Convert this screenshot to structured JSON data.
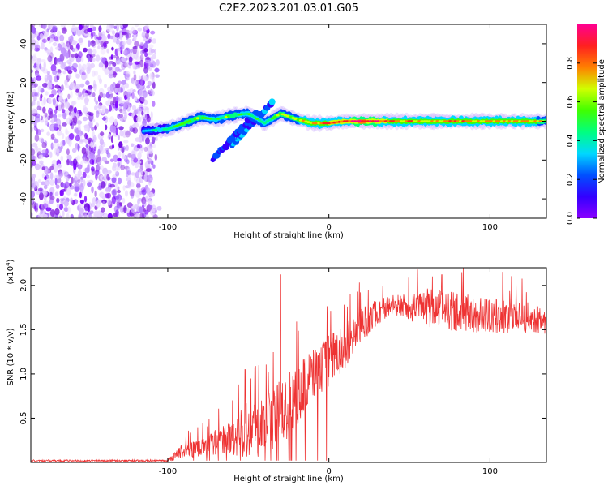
{
  "title": "C2E2.2023.201.03.01.G05",
  "chart_data": [
    {
      "type": "heatmap",
      "xlabel": "Height of straight line (km)",
      "ylabel": "Frequency (Hz)",
      "xlim": [
        -185,
        135
      ],
      "ylim": [
        -50,
        50
      ],
      "xticks": [
        -100,
        0,
        100
      ],
      "yticks": [
        -40,
        -20,
        0,
        20,
        40
      ],
      "colorbar": {
        "label": "Normalized spectral amplitude",
        "range": [
          0,
          1
        ],
        "ticks": [
          "0.0",
          "0.2",
          "0.4",
          "0.6",
          "0.8"
        ],
        "colors": [
          "#8a00ff",
          "#3300ff",
          "#0050ff",
          "#00d8ff",
          "#00ff80",
          "#40ff00",
          "#d0ff00",
          "#ff8000",
          "#ff2020",
          "#ff0090"
        ]
      },
      "noise_region": {
        "x_range": [
          -185,
          -105
        ],
        "freq_range": [
          -50,
          50
        ]
      },
      "signal_track": [
        {
          "x": -115,
          "freq": -5,
          "amp": 0.35
        },
        {
          "x": -100,
          "freq": -4,
          "amp": 0.45
        },
        {
          "x": -90,
          "freq": -1,
          "amp": 0.55
        },
        {
          "x": -80,
          "freq": 2,
          "amp": 0.55
        },
        {
          "x": -70,
          "freq": 1,
          "amp": 0.5
        },
        {
          "x": -60,
          "freq": 3,
          "amp": 0.55
        },
        {
          "x": -50,
          "freq": 4,
          "amp": 0.5
        },
        {
          "x": -40,
          "freq": -1,
          "amp": 0.45
        },
        {
          "x": -30,
          "freq": 4,
          "amp": 0.6
        },
        {
          "x": -20,
          "freq": 1,
          "amp": 0.65
        },
        {
          "x": -10,
          "freq": -1,
          "amp": 0.75
        },
        {
          "x": 0,
          "freq": -1,
          "amp": 0.8
        },
        {
          "x": 10,
          "freq": 0,
          "amp": 0.85
        },
        {
          "x": 20,
          "freq": 0,
          "amp": 0.95
        },
        {
          "x": 30,
          "freq": 0,
          "amp": 0.9
        },
        {
          "x": 40,
          "freq": 0,
          "amp": 0.75
        },
        {
          "x": 60,
          "freq": 0,
          "amp": 0.7
        },
        {
          "x": 80,
          "freq": 0,
          "amp": 0.75
        },
        {
          "x": 100,
          "freq": 0,
          "amp": 0.7
        },
        {
          "x": 120,
          "freq": 0,
          "amp": 0.7
        },
        {
          "x": 135,
          "freq": 0,
          "amp": 0.65
        }
      ],
      "branches": [
        {
          "from": [
            -60,
            -12
          ],
          "to": [
            -35,
            10
          ],
          "amp": 0.3
        },
        {
          "from": [
            -72,
            -20
          ],
          "to": [
            -45,
            5
          ],
          "amp": 0.25
        }
      ]
    },
    {
      "type": "line",
      "xlabel": "Height of straight line (km)",
      "ylabel": "SNR (10 * v/v)",
      "y_multiplier": "(x10",
      "y_multiplier_exp": "4",
      "y_multiplier_close": ")",
      "xlim": [
        -185,
        135
      ],
      "ylim": [
        0,
        2.2
      ],
      "xticks": [
        -100,
        0,
        100
      ],
      "yticks": [
        0.5,
        1.0,
        1.5,
        2.0
      ],
      "series_color": "#ee3333",
      "envelope": [
        {
          "x": -185,
          "base": 0.02,
          "spread": 0.01
        },
        {
          "x": -100,
          "base": 0.02,
          "spread": 0.01
        },
        {
          "x": -92,
          "base": 0.12,
          "spread": 0.08
        },
        {
          "x": -75,
          "base": 0.2,
          "spread": 0.12
        },
        {
          "x": -60,
          "base": 0.28,
          "spread": 0.2
        },
        {
          "x": -50,
          "base": 0.4,
          "spread": 0.35
        },
        {
          "x": -42,
          "base": 0.4,
          "spread": 0.35
        },
        {
          "x": -30,
          "base": 0.55,
          "spread": 0.4
        },
        {
          "x": -20,
          "base": 0.75,
          "spread": 0.35
        },
        {
          "x": -10,
          "base": 1.0,
          "spread": 0.3
        },
        {
          "x": 0,
          "base": 1.15,
          "spread": 0.3
        },
        {
          "x": 10,
          "base": 1.3,
          "spread": 0.25
        },
        {
          "x": 20,
          "base": 1.55,
          "spread": 0.2
        },
        {
          "x": 30,
          "base": 1.7,
          "spread": 0.15
        },
        {
          "x": 40,
          "base": 1.78,
          "spread": 0.12
        },
        {
          "x": 50,
          "base": 1.75,
          "spread": 0.15
        },
        {
          "x": 60,
          "base": 1.75,
          "spread": 0.22
        },
        {
          "x": 80,
          "base": 1.7,
          "spread": 0.22
        },
        {
          "x": 100,
          "base": 1.65,
          "spread": 0.2
        },
        {
          "x": 120,
          "base": 1.65,
          "spread": 0.18
        },
        {
          "x": 135,
          "base": 1.6,
          "spread": 0.15
        }
      ],
      "spikes": [
        {
          "x": -30,
          "y": 2.12
        },
        {
          "x": -52,
          "y": 1.05
        },
        {
          "x": 70,
          "y": 2.12
        },
        {
          "x": 108,
          "y": 2.15
        }
      ]
    }
  ]
}
